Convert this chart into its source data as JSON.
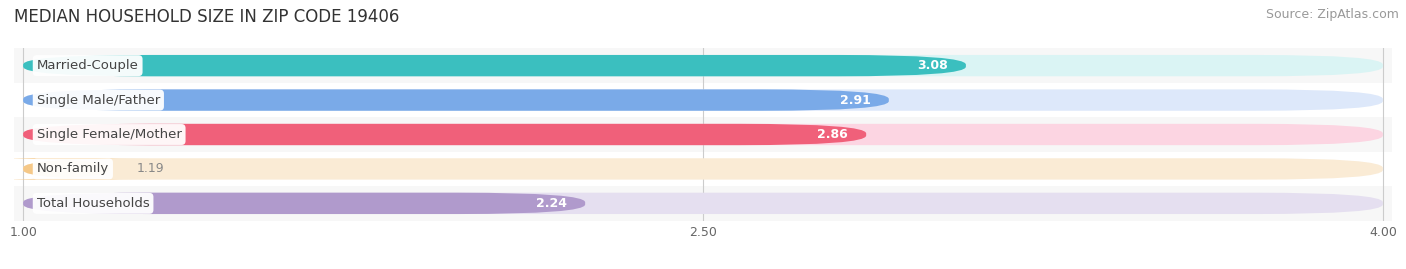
{
  "title": "MEDIAN HOUSEHOLD SIZE IN ZIP CODE 19406",
  "source": "Source: ZipAtlas.com",
  "categories": [
    "Married-Couple",
    "Single Male/Father",
    "Single Female/Mother",
    "Non-family",
    "Total Households"
  ],
  "values": [
    3.08,
    2.91,
    2.86,
    1.19,
    2.24
  ],
  "bar_colors": [
    "#3bbfbf",
    "#7aaae8",
    "#f0607a",
    "#f5c888",
    "#b09acc"
  ],
  "bar_bg_colors": [
    "#daf4f4",
    "#dde8fa",
    "#fcd5e2",
    "#faebd5",
    "#e5dff0"
  ],
  "value_label_color_inside": "#ffffff",
  "value_label_color_outside": "#888888",
  "xlim_min": 1.0,
  "xlim_max": 4.0,
  "xticks": [
    1.0,
    2.5,
    4.0
  ],
  "xticklabels": [
    "1.00",
    "2.50",
    "4.00"
  ],
  "bar_height": 0.62,
  "figsize": [
    14.06,
    2.69
  ],
  "dpi": 100,
  "title_fontsize": 12,
  "source_fontsize": 9,
  "label_fontsize": 9.5,
  "value_fontsize": 9,
  "tick_fontsize": 9,
  "background_color": "#ffffff",
  "row_bg_colors": [
    "#f0f0f0",
    "#ffffff",
    "#f0f0f0",
    "#ffffff",
    "#f0f0f0"
  ]
}
